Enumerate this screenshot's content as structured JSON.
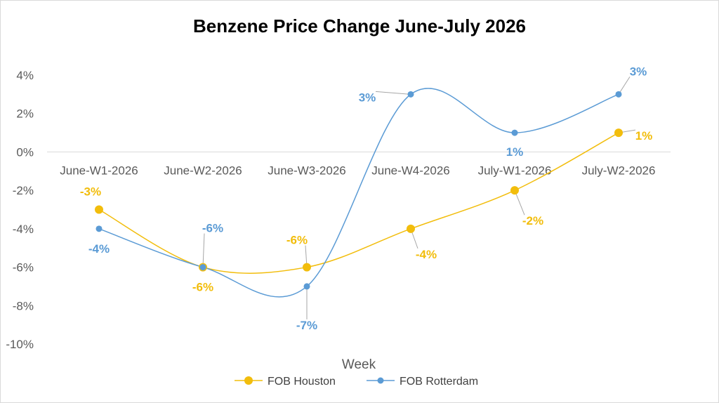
{
  "chart_data": {
    "type": "line",
    "title": "Benzene Price Change June-July 2026",
    "xlabel": "Week",
    "ylabel": "",
    "categories": [
      "June-W1-2026",
      "June-W2-2026",
      "June-W3-2026",
      "June-W4-2026",
      "July-W1-2026",
      "July-W2-2026"
    ],
    "ylim": [
      -10,
      4
    ],
    "yticks": [
      {
        "value": 4,
        "label": "4%"
      },
      {
        "value": 2,
        "label": "2%"
      },
      {
        "value": 0,
        "label": "0%"
      },
      {
        "value": -2,
        "label": "-2%"
      },
      {
        "value": -4,
        "label": "-4%"
      },
      {
        "value": -6,
        "label": "-6%"
      },
      {
        "value": -8,
        "label": "-8%"
      },
      {
        "value": -10,
        "label": "-10%"
      }
    ],
    "series": [
      {
        "name": "FOB Houston",
        "color": "#F2BD0C",
        "values": [
          -3,
          -6,
          -6,
          -4,
          -2,
          1
        ],
        "labels": [
          "-3%",
          "-6%",
          "-6%",
          "-4%",
          "-2%",
          "1%"
        ]
      },
      {
        "name": "FOB Rotterdam",
        "color": "#5B9BD5",
        "values": [
          -4,
          -6,
          -7,
          3,
          1,
          3
        ],
        "labels": [
          "-4%",
          "-6%",
          "-7%",
          "3%",
          "1%",
          "3%"
        ]
      }
    ],
    "legend_position": "bottom",
    "grid": false,
    "smooth": true
  }
}
